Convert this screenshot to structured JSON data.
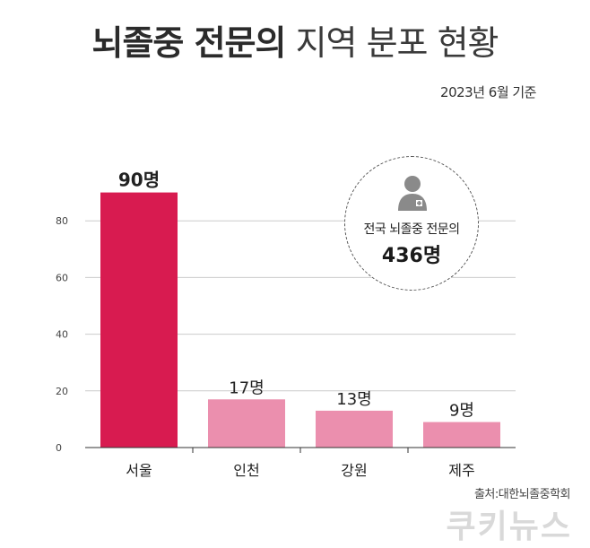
{
  "header": {
    "title_bold": "뇌졸중 전문의",
    "title_light": "지역 분포 현황",
    "date_note": "2023년 6월 기준"
  },
  "total": {
    "label": "전국 뇌졸중 전문의",
    "value": "436명"
  },
  "footer": {
    "source": "출처:대한뇌졸중학회",
    "logo": "쿠키뉴스"
  },
  "colors": {
    "highlight": "#d81b50",
    "bar": "#eb8fae",
    "grid": "#cccccc",
    "icon": "#8a8a8a"
  },
  "chart_data": {
    "type": "bar",
    "title": "",
    "xlabel": "",
    "ylabel": "",
    "categories": [
      "서울",
      "인천",
      "강원",
      "제주"
    ],
    "values": [
      90,
      17,
      13,
      9
    ],
    "value_labels": [
      "90명",
      "17명",
      "13명",
      "9명"
    ],
    "ylim": [
      0,
      100
    ],
    "yticks": [
      0,
      20,
      40,
      60,
      80
    ],
    "grid": true,
    "legend": "none"
  }
}
